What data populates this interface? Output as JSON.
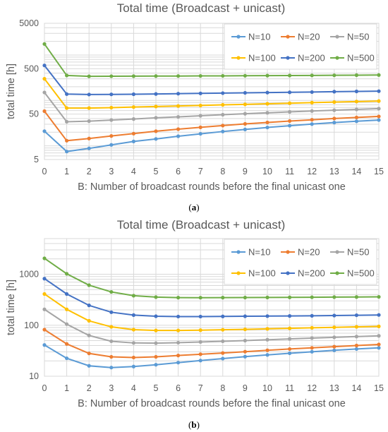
{
  "chart_data": [
    {
      "type": "line",
      "panel_label": "a",
      "title": "Total time (Broadcast + unicast)",
      "xlabel": "B: Number of broadcast rounds before the final unicast one",
      "ylabel": "total time [h]",
      "yscale": "log",
      "xlim": [
        0,
        15
      ],
      "ylim": [
        5,
        5000
      ],
      "yticks": [
        5,
        50,
        500,
        5000
      ],
      "ytick_labels": [
        "5",
        "50",
        "500",
        "5000"
      ],
      "x": [
        0,
        1,
        2,
        3,
        4,
        5,
        6,
        7,
        8,
        9,
        10,
        11,
        12,
        13,
        14,
        15
      ],
      "x_tick_labels": [
        "0",
        "1",
        "2",
        "3",
        "4",
        "5",
        "6",
        "7",
        "8",
        "9",
        "10",
        "11",
        "12",
        "13",
        "14",
        "15"
      ],
      "grid": true,
      "legend_position": "top-right",
      "series": [
        {
          "name": "N=10",
          "color": "#5b9bd5",
          "values": [
            21,
            7.5,
            8.8,
            10.5,
            12.5,
            14.2,
            16.3,
            18.4,
            20.7,
            23,
            25.4,
            27.8,
            30.2,
            32.6,
            34.8,
            37
          ]
        },
        {
          "name": "N=20",
          "color": "#ed7d31",
          "values": [
            58,
            13,
            14.5,
            16.5,
            18.6,
            21,
            23.3,
            25.6,
            28,
            30.5,
            32.8,
            35.2,
            37.5,
            40,
            42.2,
            44.5
          ]
        },
        {
          "name": "N=50",
          "color": "#a5a5a5",
          "values": [
            150,
            34,
            35,
            37,
            39,
            41.5,
            43.5,
            46,
            48.5,
            51,
            53.5,
            56,
            58.5,
            61,
            63.5,
            66
          ]
        },
        {
          "name": "N=100",
          "color": "#ffc000",
          "values": [
            300,
            68,
            68,
            69.5,
            71.5,
            73.5,
            75.5,
            77.5,
            80,
            82,
            84.5,
            87,
            89.5,
            92,
            94.5,
            97
          ]
        },
        {
          "name": "N=200",
          "color": "#4472c4",
          "values": [
            590,
            138,
            135,
            136,
            137,
            139,
            141,
            143,
            145,
            147,
            149,
            151,
            153,
            156,
            158,
            160
          ]
        },
        {
          "name": "N=500",
          "color": "#70ad47",
          "values": [
            1750,
            355,
            340,
            342,
            343,
            344,
            345,
            347,
            348,
            350,
            352,
            354,
            356,
            358,
            360,
            363
          ]
        }
      ]
    },
    {
      "type": "line",
      "panel_label": "b",
      "title": "Total time (Broadcast + unicast)",
      "xlabel": "B: Number of broadcast rounds before the final unicast one",
      "ylabel": "total time [h]",
      "yscale": "log",
      "xlim": [
        0,
        15
      ],
      "ylim": [
        10,
        5000
      ],
      "yticks": [
        10,
        100,
        1000
      ],
      "ytick_labels": [
        "10",
        "100",
        "1000"
      ],
      "x": [
        0,
        1,
        2,
        3,
        4,
        5,
        6,
        7,
        8,
        9,
        10,
        11,
        12,
        13,
        14,
        15
      ],
      "x_tick_labels": [
        "0",
        "1",
        "2",
        "3",
        "4",
        "5",
        "6",
        "7",
        "8",
        "9",
        "10",
        "11",
        "12",
        "13",
        "14",
        "15"
      ],
      "grid": true,
      "legend_position": "top-right",
      "series": [
        {
          "name": "N=10",
          "color": "#5b9bd5",
          "values": [
            41,
            22.5,
            16,
            14.8,
            15.5,
            16.8,
            18.5,
            20.3,
            22.2,
            24.2,
            26.2,
            28.2,
            30.2,
            32.2,
            34.2,
            36
          ]
        },
        {
          "name": "N=20",
          "color": "#ed7d31",
          "values": [
            82,
            43,
            28,
            24,
            23.3,
            24,
            25.5,
            27,
            28.5,
            30.3,
            32.3,
            34.2,
            36,
            38,
            40,
            42
          ]
        },
        {
          "name": "N=50",
          "color": "#a5a5a5",
          "values": [
            205,
            105,
            63,
            48.5,
            45,
            44.5,
            45.5,
            47,
            48.5,
            50,
            52,
            54,
            56,
            58,
            60,
            62
          ]
        },
        {
          "name": "N=100",
          "color": "#ffc000",
          "values": [
            410,
            205,
            122,
            93,
            82,
            79,
            79,
            80,
            81.5,
            83,
            85,
            87,
            89,
            91,
            93,
            95
          ]
        },
        {
          "name": "N=200",
          "color": "#4472c4",
          "values": [
            820,
            410,
            245,
            180,
            158,
            150,
            148,
            148,
            149,
            150,
            151,
            152,
            153,
            155,
            157,
            159
          ]
        },
        {
          "name": "N=500",
          "color": "#70ad47",
          "values": [
            2050,
            1020,
            610,
            450,
            380,
            356,
            348,
            347,
            348,
            349,
            351,
            352,
            354,
            356,
            358,
            360
          ]
        }
      ]
    }
  ]
}
